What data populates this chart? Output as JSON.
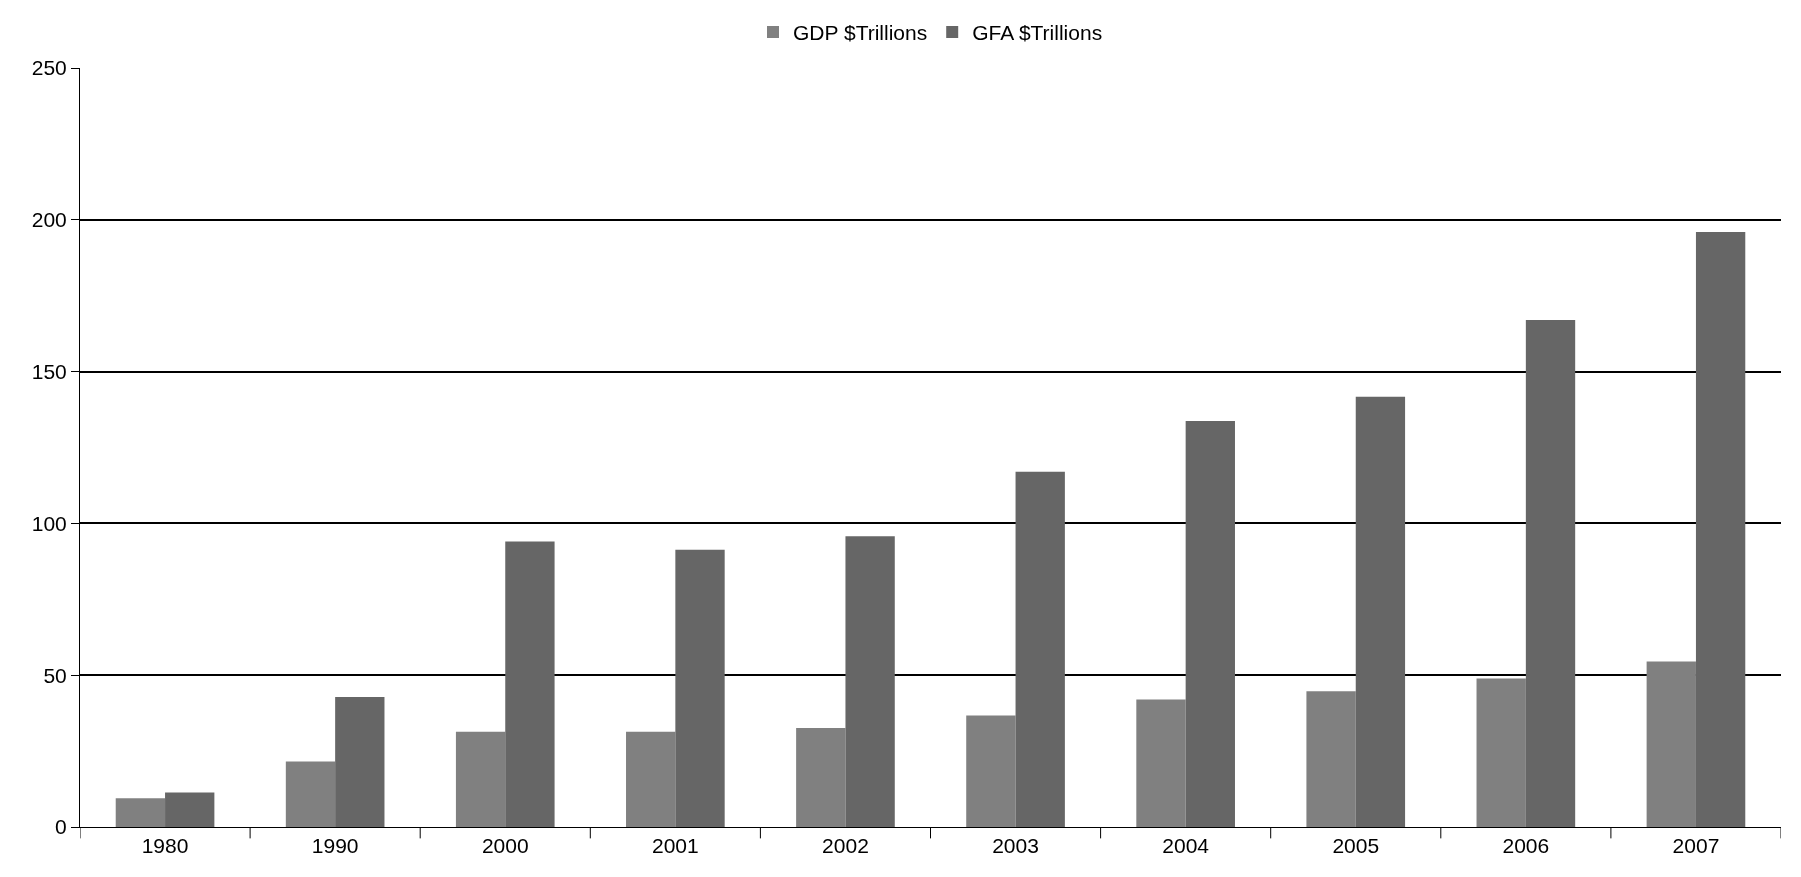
{
  "chart_data": {
    "type": "bar",
    "categories": [
      "1980",
      "1990",
      "2000",
      "2001",
      "2002",
      "2003",
      "2004",
      "2005",
      "2006",
      "2007"
    ],
    "series": [
      {
        "name": "GDP $Trillions",
        "color": "#808080",
        "values": [
          9.5,
          21.6,
          31.4,
          31.4,
          32.6,
          36.7,
          42,
          44.7,
          48.9,
          54.5
        ]
      },
      {
        "name": "GFA $Trillions",
        "color": "#666666",
        "values": [
          11.4,
          42.8,
          94,
          91.3,
          95.8,
          117,
          133.7,
          141.7,
          167,
          196
        ]
      }
    ],
    "ylim": [
      0,
      250
    ],
    "yticks": [
      0,
      50,
      100,
      150,
      200,
      250
    ],
    "grid": "y",
    "legend": "top"
  }
}
